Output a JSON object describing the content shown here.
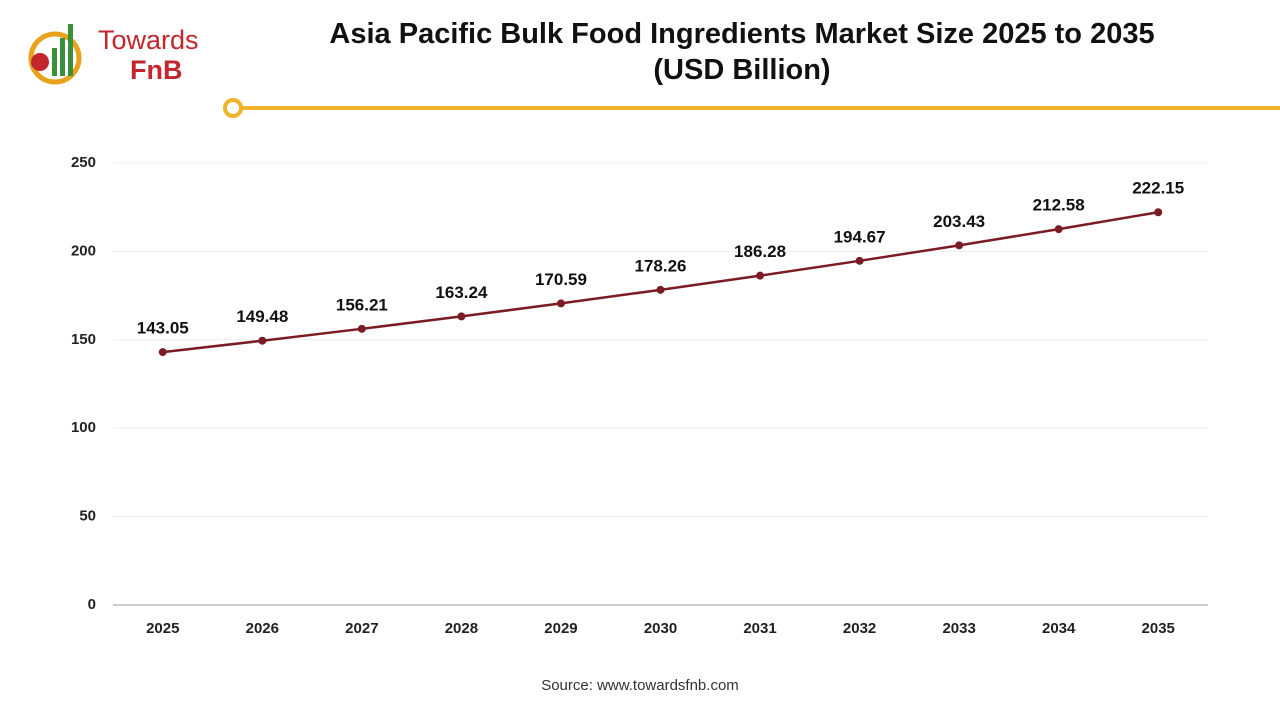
{
  "logo": {
    "line1": "Towards",
    "line2": "FnB"
  },
  "chart_data": {
    "type": "line",
    "title": "Asia Pacific Bulk Food Ingredients Market Size 2025 to 2035 (USD Billion)",
    "categories": [
      "2025",
      "2026",
      "2027",
      "2028",
      "2029",
      "2030",
      "2031",
      "2032",
      "2033",
      "2034",
      "2035"
    ],
    "series": [
      {
        "color": "#7b1c25",
        "values": [
          143.05,
          149.48,
          156.21,
          163.24,
          170.59,
          178.26,
          186.28,
          194.67,
          203.43,
          212.58,
          222.15
        ]
      }
    ],
    "ylim": [
      0,
      250
    ],
    "yticks": [
      0,
      50,
      100,
      150,
      200,
      250
    ],
    "grid": true,
    "source": "Source: www.towardsfnb.com"
  }
}
